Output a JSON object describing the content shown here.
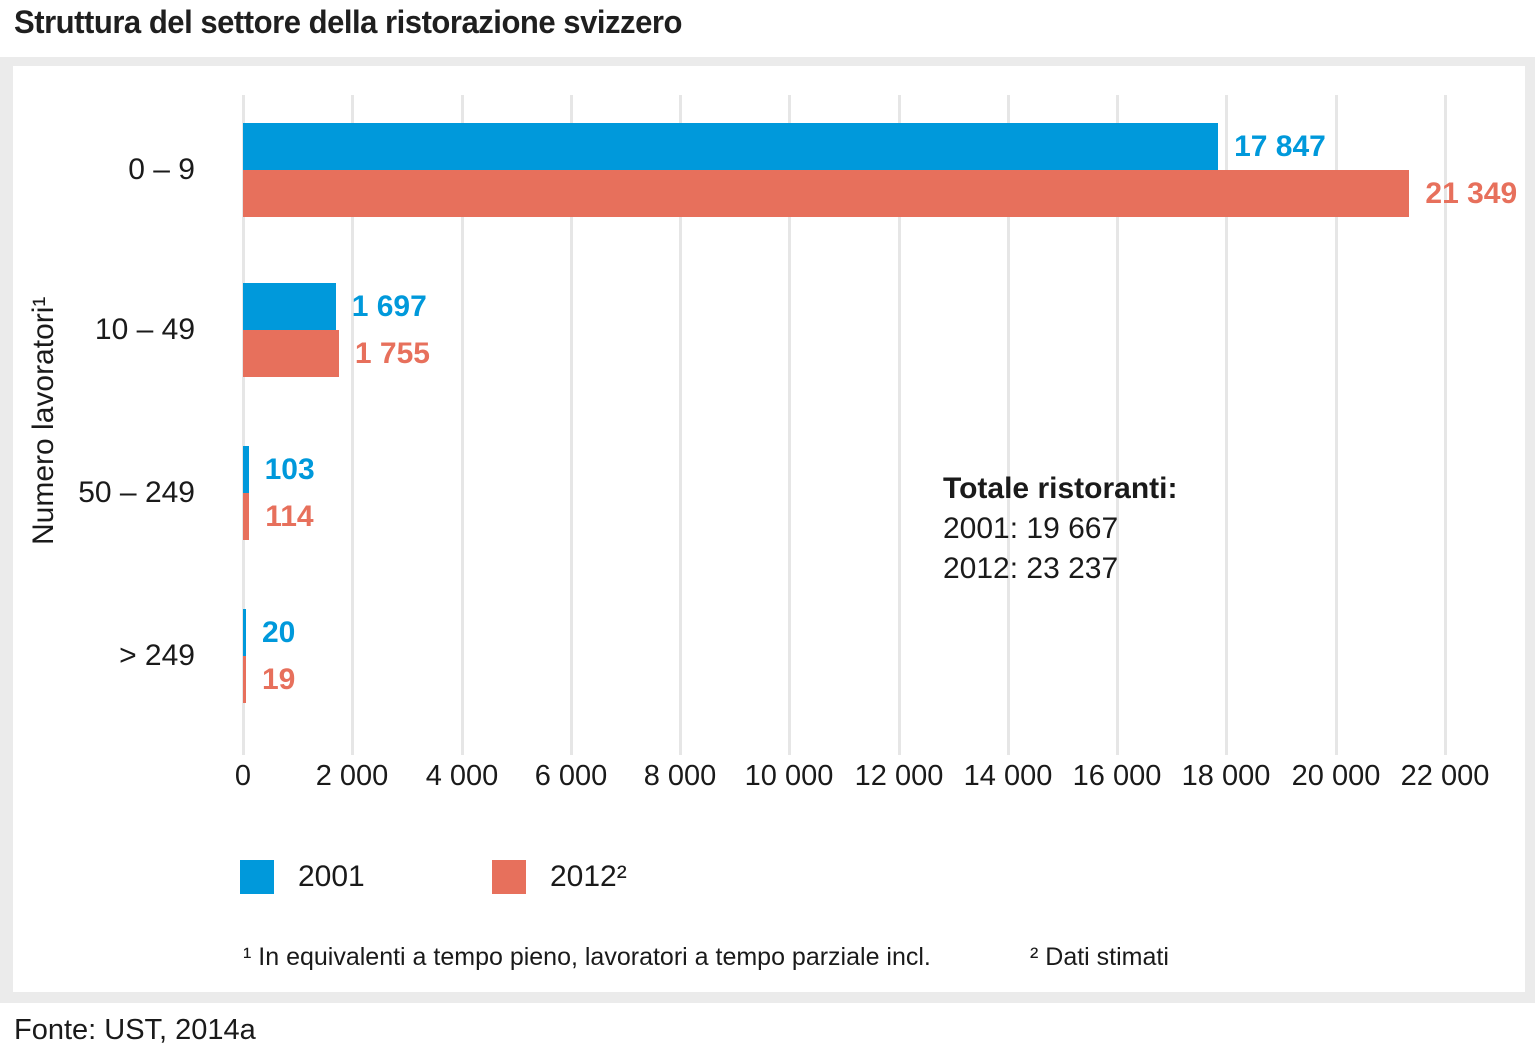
{
  "title": "Struttura del settore della ristorazione svizzero",
  "source": "Fonte: UST, 2014a",
  "colors": {
    "series_2001": "#0099db",
    "series_2012": "#e7705c",
    "panel_bg": "#ebebeb",
    "card_bg": "#ffffff",
    "grid": "#e6e6e6",
    "text": "#1a1a1a"
  },
  "chart_data": {
    "type": "bar",
    "orientation": "horizontal",
    "title": "Struttura del settore della ristorazione svizzero",
    "ylabel": "Numero lavoratori¹",
    "xlabel": "",
    "xlim": [
      0,
      22000
    ],
    "grid": true,
    "categories": [
      "0 – 9",
      "10 – 49",
      "50 – 249",
      "> 249"
    ],
    "x_ticks": [
      "0",
      "2 000",
      "4 000",
      "6 000",
      "8 000",
      "10 000",
      "12 000",
      "14 000",
      "16 000",
      "18 000",
      "20 000",
      "22 000"
    ],
    "series": [
      {
        "name": "2001",
        "color": "#0099db",
        "values": [
          17847,
          1697,
          103,
          20
        ],
        "value_labels": [
          "17 847",
          "1 697",
          "103",
          "20"
        ]
      },
      {
        "name": "2012²",
        "color": "#e7705c",
        "values": [
          21349,
          1755,
          114,
          19
        ],
        "value_labels": [
          "21 349",
          "1 755",
          "114",
          "19"
        ]
      }
    ],
    "legend": {
      "position": "bottom",
      "entries": [
        "2001",
        "2012²"
      ]
    },
    "annotation": {
      "title": "Totale ristoranti:",
      "lines": [
        "2001: 19 667",
        "2012: 23 237"
      ]
    },
    "footnotes": [
      "¹ In equivalenti a tempo pieno, lavoratori a tempo parziale incl.",
      "² Dati stimati"
    ]
  }
}
